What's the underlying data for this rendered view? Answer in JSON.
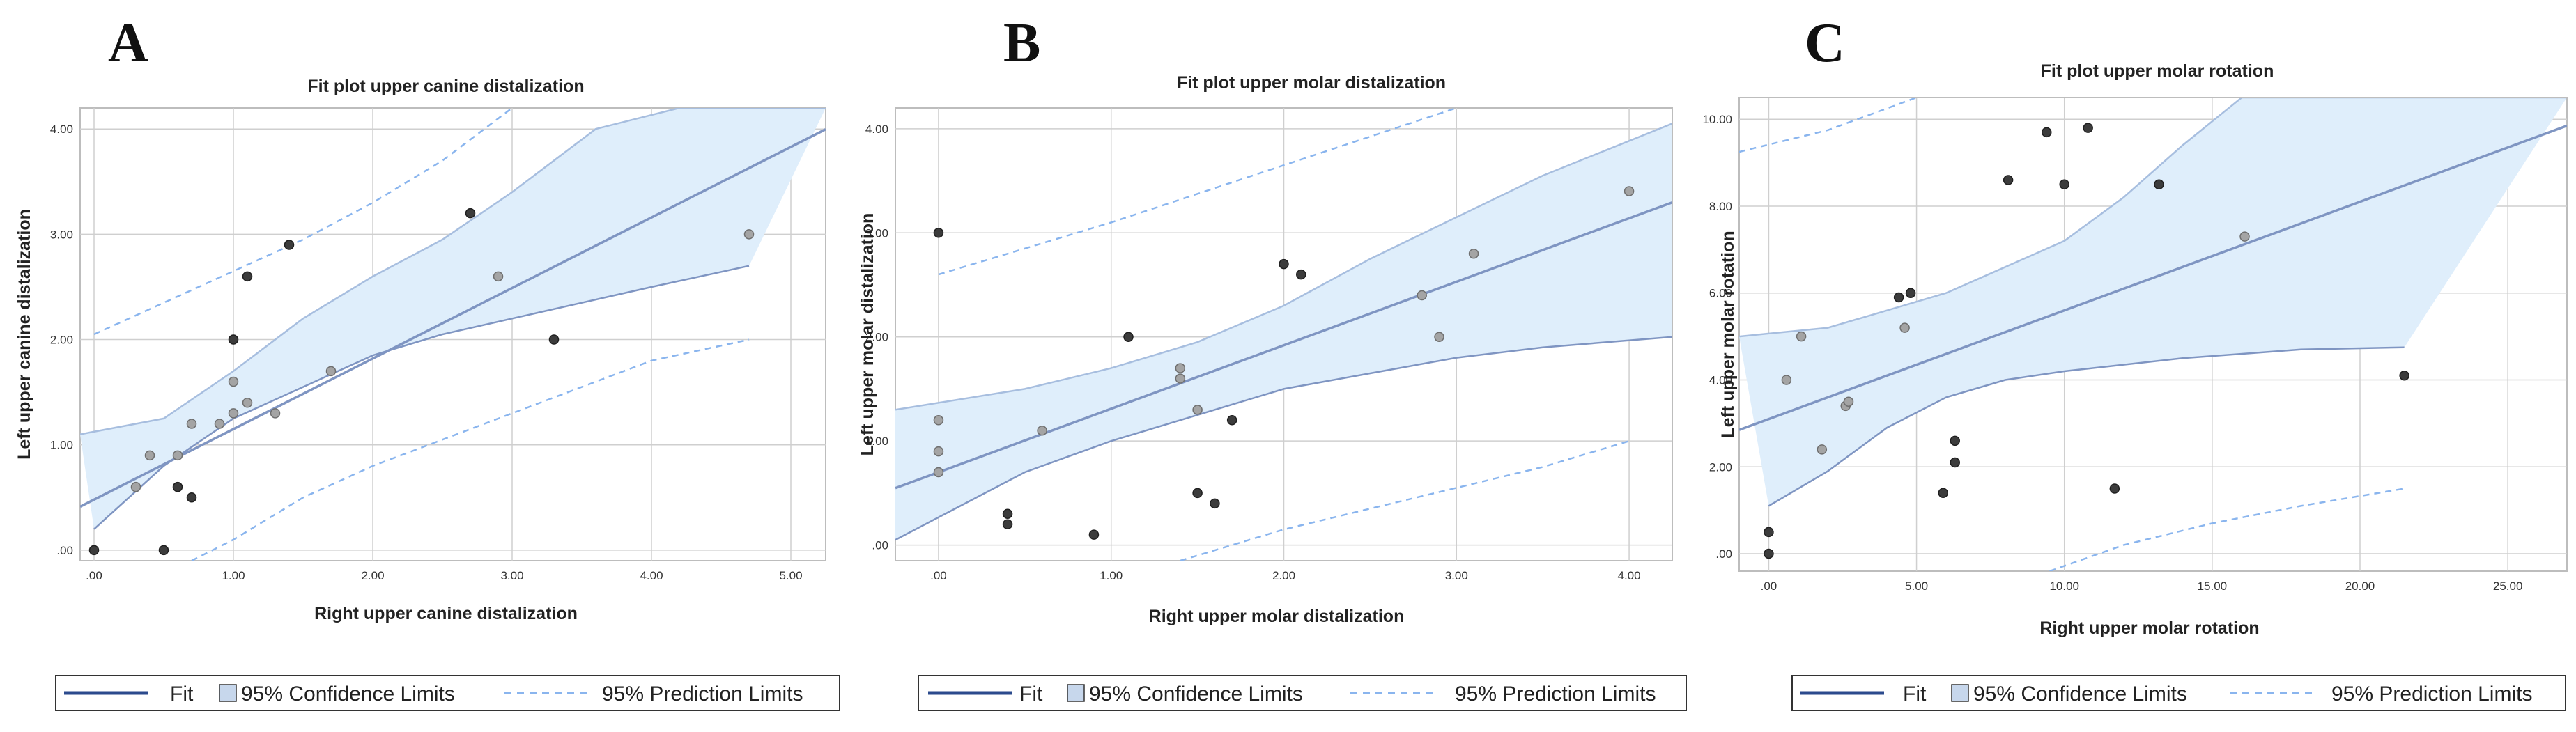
{
  "panels": [
    {
      "letter": "A"
    },
    {
      "letter": "B"
    },
    {
      "letter": "C"
    }
  ],
  "legend": {
    "fit": "Fit",
    "confidence": "95% Confidence Limits",
    "prediction": "95% Prediction Limits"
  },
  "colors": {
    "fit_line": "#7f95c2",
    "ci_fill": "#dfeefb",
    "ci_line": "#a7bedf",
    "pi_line": "#8ab5ee",
    "grid": "#cfcfcf",
    "point_dark": "#3c3c3c",
    "point_light": "#a4a4a4",
    "legend_fit": "#2b4a8d"
  },
  "chart_data": [
    {
      "type": "scatter",
      "title": "Fit plot upper canine distalization",
      "xlabel": "Right upper canine distalization",
      "ylabel": "Left upper canine distalization",
      "xlim": [
        -0.1,
        5.25
      ],
      "ylim": [
        -0.1,
        4.2
      ],
      "xticks": [
        0,
        1,
        2,
        3,
        4,
        5
      ],
      "xtick_labels": [
        ".00",
        "1.00",
        "2.00",
        "3.00",
        "4.00",
        "5.00"
      ],
      "yticks": [
        0,
        1,
        2,
        3,
        4
      ],
      "ytick_labels": [
        ".00",
        "1.00",
        "2.00",
        "3.00",
        "4.00"
      ],
      "fit": {
        "intercept": 0.48,
        "slope": 0.67
      },
      "ci_upper": [
        [
          -0.1,
          1.1
        ],
        [
          0.5,
          1.25
        ],
        [
          1.0,
          1.7
        ],
        [
          1.5,
          2.2
        ],
        [
          2.0,
          2.6
        ],
        [
          2.5,
          2.95
        ],
        [
          3.0,
          3.4
        ],
        [
          3.6,
          4.0
        ],
        [
          4.2,
          4.2
        ],
        [
          5.25,
          4.2
        ]
      ],
      "ci_lower": [
        [
          0.0,
          0.2
        ],
        [
          0.5,
          0.8
        ],
        [
          1.0,
          1.25
        ],
        [
          1.5,
          1.55
        ],
        [
          2.0,
          1.85
        ],
        [
          2.5,
          2.05
        ],
        [
          3.0,
          2.2
        ],
        [
          3.5,
          2.35
        ],
        [
          4.0,
          2.5
        ],
        [
          4.7,
          2.7
        ]
      ],
      "pi_upper": [
        [
          0.0,
          2.05
        ],
        [
          0.5,
          2.35
        ],
        [
          1.0,
          2.65
        ],
        [
          1.5,
          2.95
        ],
        [
          2.0,
          3.3
        ],
        [
          2.5,
          3.7
        ],
        [
          3.0,
          4.2
        ]
      ],
      "pi_lower": [
        [
          0.7,
          -0.1
        ],
        [
          1.0,
          0.1
        ],
        [
          1.5,
          0.5
        ],
        [
          2.0,
          0.8
        ],
        [
          2.5,
          1.05
        ],
        [
          3.0,
          1.3
        ],
        [
          3.5,
          1.55
        ],
        [
          4.0,
          1.8
        ],
        [
          4.7,
          2.0
        ]
      ],
      "points_dark": [
        [
          0.0,
          0.0
        ],
        [
          0.5,
          0.0
        ],
        [
          0.6,
          0.6
        ],
        [
          0.7,
          0.5
        ],
        [
          1.0,
          2.0
        ],
        [
          1.1,
          2.6
        ],
        [
          1.4,
          2.9
        ],
        [
          2.7,
          3.2
        ],
        [
          3.3,
          2.0
        ]
      ],
      "points_light": [
        [
          0.3,
          0.6
        ],
        [
          0.4,
          0.9
        ],
        [
          0.6,
          0.9
        ],
        [
          0.7,
          1.2
        ],
        [
          0.9,
          1.2
        ],
        [
          1.0,
          1.3
        ],
        [
          1.0,
          1.6
        ],
        [
          1.1,
          1.4
        ],
        [
          1.3,
          1.3
        ],
        [
          1.7,
          1.7
        ],
        [
          2.9,
          2.6
        ],
        [
          4.7,
          3.0
        ]
      ]
    },
    {
      "type": "scatter",
      "title": "Fit plot upper molar distalization",
      "xlabel": "Right upper molar distalization",
      "ylabel": "Left upper molar distalization",
      "xlim": [
        -0.25,
        4.25
      ],
      "ylim": [
        -0.15,
        4.2
      ],
      "xticks": [
        0,
        1,
        2,
        3,
        4
      ],
      "xtick_labels": [
        ".00",
        "1.00",
        "2.00",
        "3.00",
        "4.00"
      ],
      "yticks": [
        0,
        1,
        2,
        3,
        4
      ],
      "ytick_labels": [
        ".00",
        "1.00",
        "2.00",
        "3.00",
        "4.00"
      ],
      "fit": {
        "intercept": 0.7,
        "slope": 0.61
      },
      "ci_upper": [
        [
          -0.25,
          1.3
        ],
        [
          0.5,
          1.5
        ],
        [
          1.0,
          1.7
        ],
        [
          1.5,
          1.95
        ],
        [
          2.0,
          2.3
        ],
        [
          2.5,
          2.75
        ],
        [
          3.0,
          3.15
        ],
        [
          3.5,
          3.55
        ],
        [
          4.25,
          4.05
        ]
      ],
      "ci_lower": [
        [
          -0.25,
          0.05
        ],
        [
          0.5,
          0.7
        ],
        [
          1.0,
          1.0
        ],
        [
          1.5,
          1.25
        ],
        [
          2.0,
          1.5
        ],
        [
          2.5,
          1.65
        ],
        [
          3.0,
          1.8
        ],
        [
          3.5,
          1.9
        ],
        [
          4.25,
          2.0
        ]
      ],
      "pi_upper": [
        [
          0.0,
          2.6
        ],
        [
          1.0,
          3.1
        ],
        [
          2.0,
          3.65
        ],
        [
          3.0,
          4.2
        ]
      ],
      "pi_lower": [
        [
          1.4,
          -0.15
        ],
        [
          2.0,
          0.15
        ],
        [
          2.5,
          0.35
        ],
        [
          3.0,
          0.55
        ],
        [
          3.5,
          0.75
        ],
        [
          4.0,
          1.0
        ]
      ],
      "points_dark": [
        [
          0.0,
          3.0
        ],
        [
          0.4,
          0.3
        ],
        [
          0.4,
          0.2
        ],
        [
          0.9,
          0.1
        ],
        [
          1.1,
          2.0
        ],
        [
          1.5,
          0.5
        ],
        [
          1.6,
          0.4
        ],
        [
          1.7,
          1.2
        ],
        [
          2.0,
          2.7
        ],
        [
          2.1,
          2.6
        ]
      ],
      "points_light": [
        [
          0.0,
          1.2
        ],
        [
          0.0,
          0.9
        ],
        [
          0.0,
          0.7
        ],
        [
          0.6,
          1.1
        ],
        [
          1.4,
          1.7
        ],
        [
          1.4,
          1.6
        ],
        [
          1.5,
          1.3
        ],
        [
          2.8,
          2.4
        ],
        [
          2.9,
          2.0
        ],
        [
          3.1,
          2.8
        ],
        [
          4.0,
          3.4
        ]
      ]
    },
    {
      "type": "scatter",
      "title": "Fit plot upper molar rotation",
      "xlabel": "Right upper molar rotation",
      "ylabel": "Left upper molar rotation",
      "xlim": [
        -1.0,
        27.0
      ],
      "ylim": [
        -0.4,
        10.5
      ],
      "xticks": [
        0,
        5,
        10,
        15,
        20,
        25
      ],
      "xtick_labels": [
        ".00",
        "5.00",
        "10.00",
        "15.00",
        "20.00",
        "25.00"
      ],
      "yticks": [
        0,
        2,
        4,
        6,
        8,
        10
      ],
      "ytick_labels": [
        ".00",
        "2.00",
        "4.00",
        "6.00",
        "8.00",
        "10.00"
      ],
      "fit": {
        "intercept": 3.1,
        "slope": 0.25
      },
      "ci_upper": [
        [
          -1.0,
          5.0
        ],
        [
          2.0,
          5.2
        ],
        [
          4.0,
          5.6
        ],
        [
          6.0,
          6.0
        ],
        [
          8.0,
          6.6
        ],
        [
          10.0,
          7.2
        ],
        [
          12.0,
          8.2
        ],
        [
          14.0,
          9.4
        ],
        [
          16.0,
          10.5
        ],
        [
          27.0,
          10.5
        ]
      ],
      "ci_lower": [
        [
          0.0,
          1.1
        ],
        [
          2.0,
          1.9
        ],
        [
          4.0,
          2.9
        ],
        [
          6.0,
          3.6
        ],
        [
          8.0,
          4.0
        ],
        [
          10.0,
          4.2
        ],
        [
          14.0,
          4.5
        ],
        [
          18.0,
          4.7
        ],
        [
          21.5,
          4.75
        ]
      ],
      "pi_upper": [
        [
          -1.0,
          9.25
        ],
        [
          2.0,
          9.75
        ],
        [
          5.0,
          10.5
        ]
      ],
      "pi_lower": [
        [
          9.5,
          -0.4
        ],
        [
          12.0,
          0.2
        ],
        [
          15.0,
          0.7
        ],
        [
          18.0,
          1.1
        ],
        [
          21.5,
          1.5
        ]
      ],
      "points_dark": [
        [
          0.0,
          0.5
        ],
        [
          0.0,
          0.0
        ],
        [
          4.4,
          5.9
        ],
        [
          4.8,
          6.0
        ],
        [
          5.9,
          1.4
        ],
        [
          6.3,
          2.6
        ],
        [
          6.3,
          2.1
        ],
        [
          8.1,
          8.6
        ],
        [
          9.4,
          9.7
        ],
        [
          10.0,
          8.5
        ],
        [
          10.8,
          9.8
        ],
        [
          11.7,
          1.5
        ],
        [
          13.2,
          8.5
        ],
        [
          21.5,
          4.1
        ]
      ],
      "points_light": [
        [
          0.6,
          4.0
        ],
        [
          1.1,
          5.0
        ],
        [
          1.8,
          2.4
        ],
        [
          2.6,
          3.4
        ],
        [
          2.7,
          3.5
        ],
        [
          4.6,
          5.2
        ],
        [
          16.1,
          7.3
        ]
      ]
    }
  ]
}
